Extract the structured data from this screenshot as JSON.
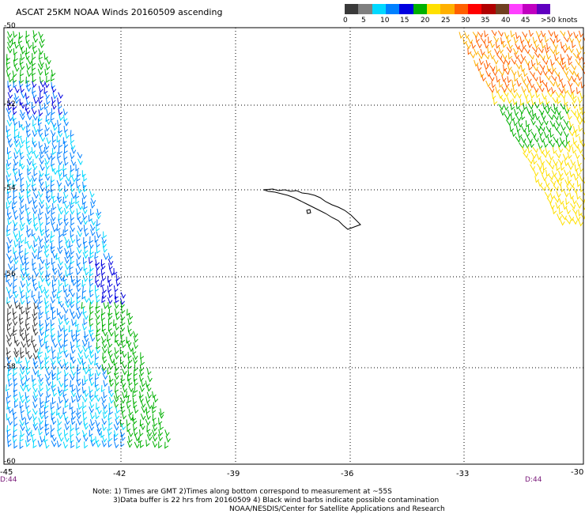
{
  "title": "ASCAT 25KM NOAA Winds 20160509 ascending",
  "colorbar": {
    "colors": [
      "#3a3a3a",
      "#7f7f7f",
      "#00d8ff",
      "#0080ff",
      "#0000e0",
      "#00b000",
      "#ffe000",
      "#ffb000",
      "#ff6000",
      "#ff0000",
      "#b00000",
      "#704020",
      "#ff40ff",
      "#c000c0",
      "#6000c0"
    ],
    "labels": [
      "0",
      "5",
      "10",
      "15",
      "20",
      "25",
      "30",
      "35",
      "40",
      "45",
      ">50 knots"
    ]
  },
  "map": {
    "lon_labels": [
      "-45",
      "-42",
      "-39",
      "-36",
      "-33",
      "-30"
    ],
    "lat_labels": [
      "-50",
      "-52",
      "-54",
      "-56",
      "-58",
      "-60"
    ],
    "time_left": "D:44",
    "time_right": "D:44"
  },
  "notes": {
    "line1": "Note: 1) Times are GMT 2)Times along bottom correspond to measurement at ~55S",
    "line2": "3)Data buffer is 22 hrs from 20160509 4) Black wind barbs indicate possible contamination",
    "line3": "NOAA/NESDIS/Center for Satellite Applications and Research"
  }
}
